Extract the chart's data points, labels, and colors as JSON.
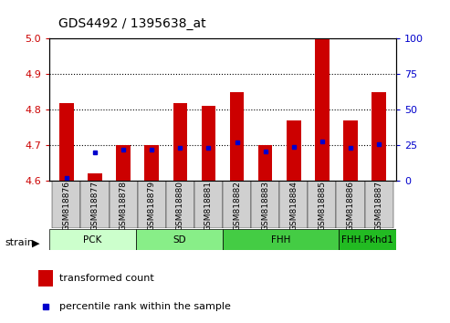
{
  "title": "GDS4492 / 1395638_at",
  "samples": [
    "GSM818876",
    "GSM818877",
    "GSM818878",
    "GSM818879",
    "GSM818880",
    "GSM818881",
    "GSM818882",
    "GSM818883",
    "GSM818884",
    "GSM818885",
    "GSM818886",
    "GSM818887"
  ],
  "red_values": [
    4.82,
    4.62,
    4.7,
    4.7,
    4.82,
    4.81,
    4.85,
    4.7,
    4.77,
    5.0,
    4.77,
    4.85
  ],
  "blue_values_pct": [
    2,
    20,
    22,
    22,
    23,
    23,
    27,
    21,
    24,
    28,
    23,
    26
  ],
  "ymin": 4.6,
  "ymax": 5.0,
  "yticks": [
    4.6,
    4.7,
    4.8,
    4.9,
    5.0
  ],
  "y2min": 0,
  "y2max": 100,
  "y2ticks": [
    0,
    25,
    50,
    75,
    100
  ],
  "groups": [
    {
      "label": "PCK",
      "start": 0,
      "end": 2,
      "color": "#ccffcc"
    },
    {
      "label": "SD",
      "start": 3,
      "end": 5,
      "color": "#88ee88"
    },
    {
      "label": "FHH",
      "start": 6,
      "end": 9,
      "color": "#44cc44"
    },
    {
      "label": "FHH.Pkhd1",
      "start": 10,
      "end": 11,
      "color": "#22bb22"
    }
  ],
  "bar_color": "#cc0000",
  "dot_color": "#0000cc",
  "bar_bottom": 4.6,
  "axis_color_left": "#cc0000",
  "axis_color_right": "#0000cc",
  "plot_bg": "#ffffff",
  "group_bar_bg": "#d0d0d0"
}
